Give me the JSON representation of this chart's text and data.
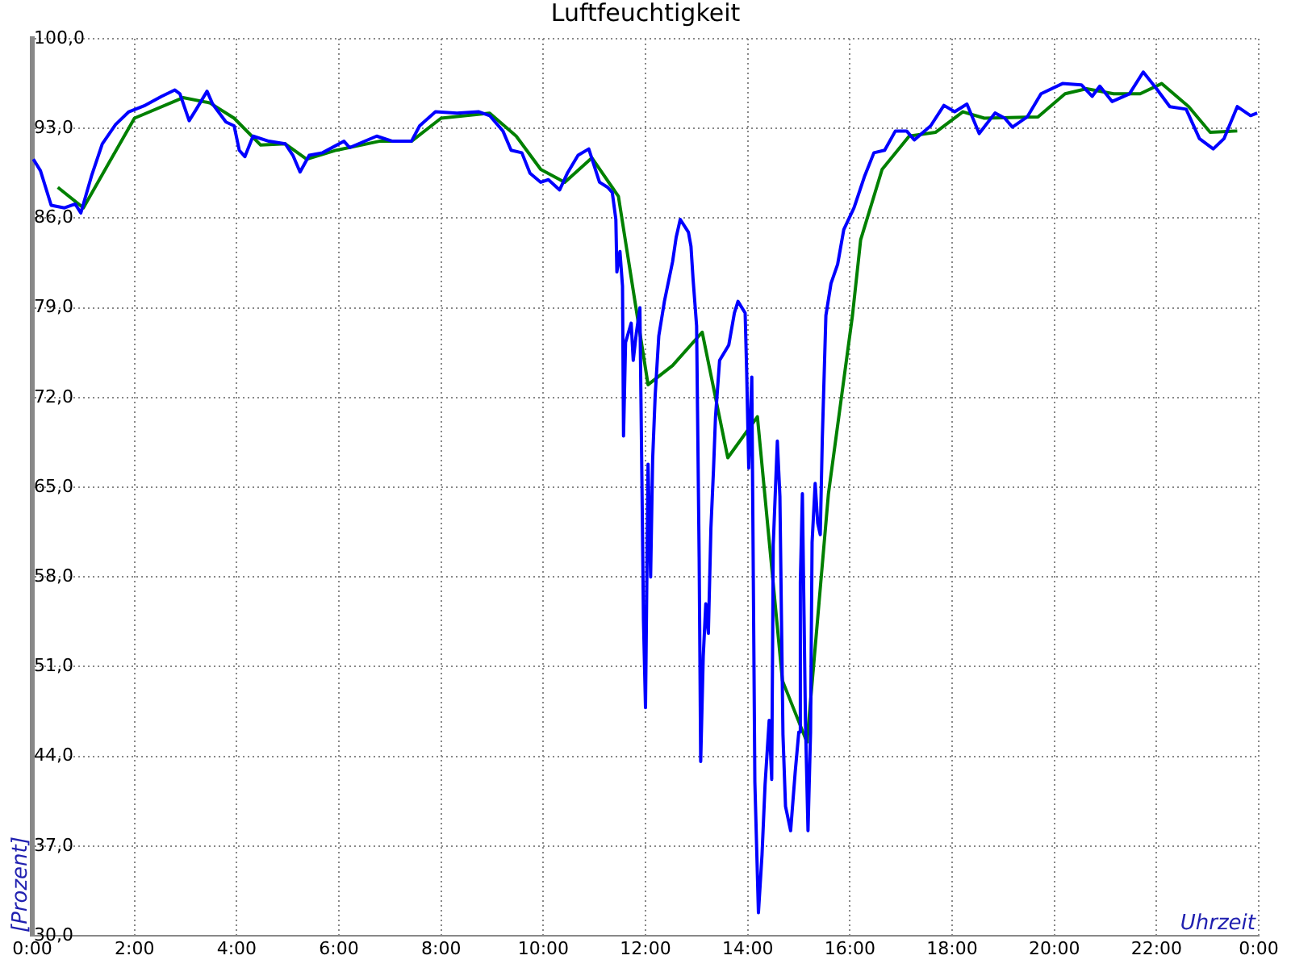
{
  "chart_data": {
    "type": "line",
    "title": "Luftfeuchtigkeit",
    "xlabel": "Uhrzeit",
    "ylabel": "[Prozent]",
    "xlim": [
      0,
      24
    ],
    "xticks": [
      {
        "value": 0,
        "label": "0:00"
      },
      {
        "value": 2,
        "label": "2:00"
      },
      {
        "value": 4,
        "label": "4:00"
      },
      {
        "value": 6,
        "label": "6:00"
      },
      {
        "value": 8,
        "label": "8:00"
      },
      {
        "value": 10,
        "label": "10:00"
      },
      {
        "value": 12,
        "label": "12:00"
      },
      {
        "value": 14,
        "label": "14:00"
      },
      {
        "value": 16,
        "label": "16:00"
      },
      {
        "value": 18,
        "label": "18:00"
      },
      {
        "value": 20,
        "label": "20:00"
      },
      {
        "value": 22,
        "label": "22:00"
      },
      {
        "value": 24,
        "label": "0:00"
      }
    ],
    "ylim": [
      30,
      100
    ],
    "yticks": [
      {
        "value": 30,
        "label": "30,0"
      },
      {
        "value": 37,
        "label": "37,0"
      },
      {
        "value": 44,
        "label": "44,0"
      },
      {
        "value": 51,
        "label": "51,0"
      },
      {
        "value": 58,
        "label": "58,0"
      },
      {
        "value": 65,
        "label": "65,0"
      },
      {
        "value": 72,
        "label": "72,0"
      },
      {
        "value": 79,
        "label": "79,0"
      },
      {
        "value": 86,
        "label": "86,0"
      },
      {
        "value": 93,
        "label": "93,0"
      },
      {
        "value": 100,
        "label": "100,0"
      }
    ],
    "grid": true,
    "legend": false,
    "series": [
      {
        "color": "#0000ff",
        "x": [
          0.02,
          0.16,
          0.37,
          0.63,
          0.84,
          0.95,
          1.16,
          1.37,
          1.63,
          1.89,
          2.21,
          2.53,
          2.79,
          2.89,
          3.07,
          3.21,
          3.42,
          3.53,
          3.79,
          3.95,
          4.05,
          4.16,
          4.32,
          4.63,
          4.95,
          5.1,
          5.24,
          5.42,
          5.68,
          6.1,
          6.21,
          6.74,
          7.05,
          7.42,
          7.58,
          7.89,
          8.31,
          8.74,
          8.95,
          9.21,
          9.37,
          9.58,
          9.74,
          9.95,
          10.1,
          10.32,
          10.47,
          10.68,
          10.89,
          11.1,
          11.26,
          11.35,
          11.42,
          11.44,
          11.5,
          11.55,
          11.57,
          11.61,
          11.72,
          11.76,
          11.82,
          11.89,
          11.93,
          11.96,
          12.0,
          12.05,
          12.1,
          12.14,
          12.19,
          12.26,
          12.37,
          12.53,
          12.6,
          12.68,
          12.84,
          12.89,
          12.93,
          13.0,
          13.05,
          13.08,
          13.13,
          13.18,
          13.23,
          13.28,
          13.33,
          13.37,
          13.45,
          13.63,
          13.74,
          13.81,
          13.95,
          13.98,
          14.02,
          14.08,
          14.14,
          14.21,
          14.28,
          14.34,
          14.42,
          14.47,
          14.5,
          14.58,
          14.63,
          14.69,
          14.74,
          14.84,
          14.93,
          15.0,
          15.03,
          15.07,
          15.13,
          15.18,
          15.23,
          15.26,
          15.32,
          15.37,
          15.42,
          15.46,
          15.53,
          15.63,
          15.76,
          15.88,
          16.08,
          16.29,
          16.47,
          16.68,
          16.89,
          17.11,
          17.26,
          17.58,
          17.84,
          18.05,
          18.29,
          18.53,
          18.84,
          19.03,
          19.18,
          19.47,
          19.74,
          20.16,
          20.53,
          20.74,
          20.89,
          21.13,
          21.47,
          21.74,
          22.0,
          22.26,
          22.58,
          22.84,
          23.11,
          23.32,
          23.58,
          23.84,
          23.97
        ],
        "values": [
          90.6,
          89.7,
          87.0,
          86.8,
          87.1,
          86.4,
          89.3,
          91.8,
          93.3,
          94.3,
          94.8,
          95.5,
          96.0,
          95.7,
          93.6,
          94.5,
          95.9,
          94.9,
          93.5,
          93.2,
          91.3,
          90.8,
          92.4,
          92.0,
          91.8,
          90.9,
          89.6,
          90.9,
          91.1,
          92.0,
          91.5,
          92.4,
          92.0,
          92.0,
          93.2,
          94.3,
          94.2,
          94.3,
          94.0,
          92.8,
          91.3,
          91.1,
          89.5,
          88.8,
          89.0,
          88.2,
          89.5,
          90.9,
          91.4,
          88.8,
          88.4,
          88.0,
          85.9,
          81.8,
          83.4,
          80.7,
          69.0,
          76.3,
          77.8,
          74.9,
          77.0,
          79.0,
          65.5,
          54.7,
          47.8,
          66.8,
          58.0,
          67.2,
          72.2,
          76.8,
          79.5,
          82.6,
          84.5,
          85.9,
          84.9,
          83.8,
          81.3,
          77.6,
          59.5,
          43.6,
          51.8,
          55.9,
          53.6,
          61.8,
          66.3,
          70.5,
          74.9,
          76.1,
          78.6,
          79.5,
          78.6,
          74.0,
          66.5,
          73.6,
          42.0,
          31.8,
          36.3,
          41.8,
          46.8,
          42.2,
          60.5,
          68.6,
          64.3,
          45.7,
          40.1,
          38.2,
          42.8,
          45.9,
          57.6,
          64.5,
          46.8,
          38.2,
          45.9,
          60.7,
          65.3,
          62.2,
          61.3,
          68.8,
          78.4,
          80.9,
          82.4,
          85.1,
          86.8,
          89.3,
          91.1,
          91.3,
          92.8,
          92.8,
          92.1,
          93.2,
          94.8,
          94.3,
          94.9,
          92.6,
          94.2,
          93.8,
          93.1,
          93.9,
          95.7,
          96.5,
          96.4,
          95.5,
          96.3,
          95.1,
          95.7,
          97.4,
          96.1,
          94.7,
          94.5,
          92.2,
          91.4,
          92.2,
          94.7,
          94.0,
          94.2
        ]
      },
      {
        "color": "#008000",
        "x": [
          0.5,
          1.0,
          1.47,
          2.0,
          2.95,
          3.47,
          3.95,
          4.47,
          4.95,
          5.37,
          5.95,
          6.79,
          7.42,
          8.0,
          8.95,
          9.47,
          9.95,
          10.42,
          10.95,
          11.47,
          12.05,
          12.53,
          13.11,
          13.61,
          14.19,
          14.68,
          15.16,
          15.58,
          16.05,
          16.21,
          16.63,
          17.16,
          17.68,
          18.21,
          18.63,
          19.68,
          20.21,
          20.63,
          21.16,
          21.68,
          22.1,
          22.63,
          23.05,
          23.58
        ],
        "values": [
          88.4,
          86.8,
          90.1,
          93.8,
          95.4,
          95.0,
          93.8,
          91.7,
          91.8,
          90.6,
          91.3,
          92.0,
          92.0,
          93.8,
          94.2,
          92.4,
          89.8,
          88.8,
          90.7,
          87.7,
          73.0,
          74.5,
          77.1,
          67.3,
          70.5,
          49.9,
          45.1,
          64.5,
          78.4,
          84.3,
          89.8,
          92.4,
          92.7,
          94.3,
          93.8,
          93.9,
          95.7,
          96.1,
          95.7,
          95.7,
          96.5,
          94.7,
          92.7,
          92.8
        ]
      }
    ]
  }
}
